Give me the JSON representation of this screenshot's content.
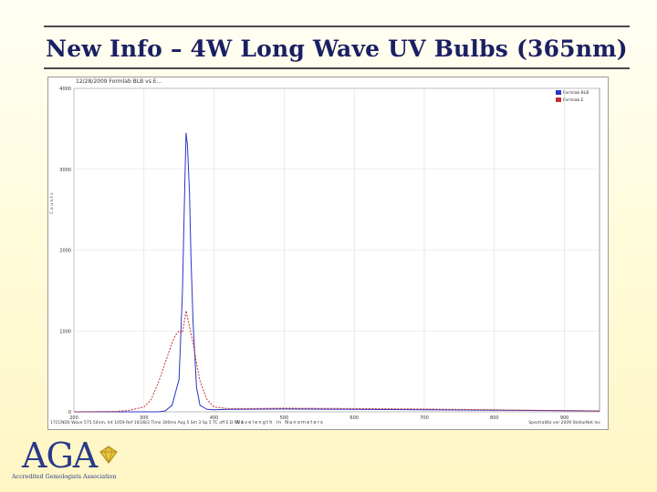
{
  "slide": {
    "title": "New Info – 4W Long Wave UV Bulbs (365nm)"
  },
  "screenshot": {
    "header": "12/28/2009   Formlab BLB vs E...",
    "x_axis_label": "Wavelength in Nanometers",
    "y_axis_label": "Counts",
    "status_left": "17CCNDS   Wave 575.54nm, Int 1059  Ref 10/28/2 Time 300ms Avg 5 Sm 3 Sp 5 TC off E:D Ch 1",
    "status_right": "SpectraWiz ver 2009 StellarNet Inc"
  },
  "chart_data": {
    "type": "line",
    "xlim": [
      200,
      950
    ],
    "ylim": [
      0,
      4000
    ],
    "x_ticks": [
      "200",
      "300",
      "400",
      "500",
      "600",
      "700",
      "800",
      "900"
    ],
    "y_ticks": [
      "0",
      "1000",
      "2000",
      "3000",
      "4000"
    ],
    "grid": true,
    "legend_position": "top-right",
    "series": [
      {
        "name": "Formlab BLB",
        "color": "#2a34c6",
        "x": [
          200,
          320,
          330,
          340,
          350,
          355,
          358,
          360,
          362,
          365,
          367,
          370,
          375,
          380,
          390,
          400,
          420,
          500,
          600,
          700,
          800,
          900,
          950
        ],
        "y": [
          0,
          0,
          10,
          80,
          400,
          1500,
          2700,
          3450,
          3300,
          2700,
          1900,
          1100,
          300,
          80,
          30,
          25,
          30,
          35,
          30,
          25,
          20,
          15,
          10
        ]
      },
      {
        "name": "Formlab E",
        "color": "#c43030",
        "x": [
          200,
          260,
          280,
          300,
          310,
          320,
          330,
          340,
          345,
          350,
          355,
          360,
          365,
          370,
          375,
          380,
          390,
          400,
          420,
          450,
          500,
          600,
          700,
          800,
          900,
          950
        ],
        "y": [
          0,
          5,
          20,
          60,
          150,
          350,
          600,
          850,
          950,
          1000,
          980,
          1250,
          1050,
          850,
          600,
          380,
          150,
          60,
          40,
          40,
          45,
          40,
          35,
          25,
          15,
          10
        ]
      }
    ]
  },
  "logo": {
    "text": "AGA",
    "subtitle": "Accredited Gemologists Association"
  },
  "colors": {
    "title": "#1b1f63",
    "logo": "#2a3a8a",
    "gem": "#e8c43a"
  }
}
